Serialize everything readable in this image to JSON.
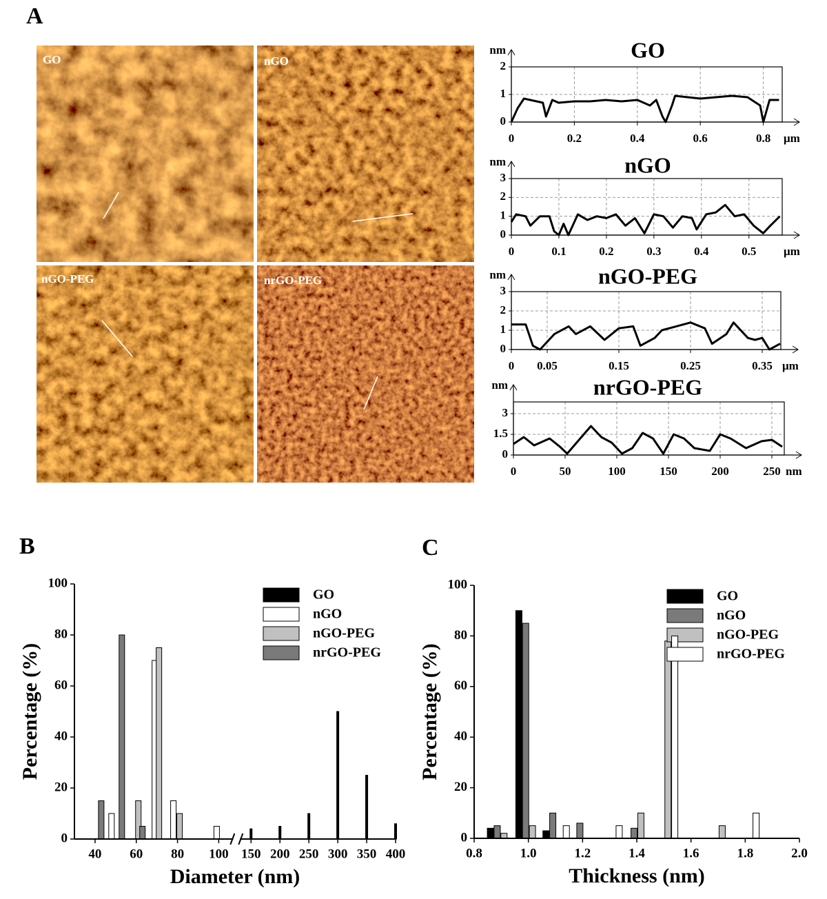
{
  "panel_labels": [
    "A",
    "B",
    "C"
  ],
  "afm_labels": [
    "GO",
    "nGO",
    "nGO-PEG",
    "nrGO-PEG"
  ],
  "chart_data": [
    {
      "type": "line",
      "title": "GO",
      "y_unit": "nm",
      "x_unit": "μm",
      "color": "#000000",
      "x": [
        0,
        0.02,
        0.04,
        0.06,
        0.08,
        0.1,
        0.11,
        0.13,
        0.15,
        0.2,
        0.25,
        0.3,
        0.35,
        0.4,
        0.44,
        0.46,
        0.48,
        0.49,
        0.51,
        0.52,
        0.56,
        0.6,
        0.65,
        0.7,
        0.75,
        0.79,
        0.8,
        0.82,
        0.85
      ],
      "values": [
        0,
        0.5,
        0.85,
        0.8,
        0.75,
        0.7,
        0.2,
        0.8,
        0.7,
        0.75,
        0.75,
        0.8,
        0.75,
        0.8,
        0.6,
        0.8,
        0.2,
        0,
        0.6,
        0.95,
        0.9,
        0.85,
        0.9,
        0.95,
        0.9,
        0.6,
        0,
        0.8,
        0.8
      ],
      "xlim": [
        0,
        0.86
      ],
      "xticks": [
        0,
        0.2,
        0.4,
        0.6,
        0.8
      ],
      "ylim": [
        0,
        2
      ],
      "yticks": [
        0,
        1,
        2
      ],
      "grid": true
    },
    {
      "type": "line",
      "title": "nGO",
      "y_unit": "nm",
      "x_unit": "μm",
      "color": "#000000",
      "x": [
        0,
        0.01,
        0.03,
        0.04,
        0.06,
        0.08,
        0.09,
        0.1,
        0.11,
        0.12,
        0.14,
        0.16,
        0.18,
        0.2,
        0.22,
        0.24,
        0.26,
        0.28,
        0.3,
        0.32,
        0.34,
        0.36,
        0.38,
        0.39,
        0.41,
        0.43,
        0.45,
        0.47,
        0.49,
        0.51,
        0.53,
        0.545,
        0.565
      ],
      "values": [
        0.7,
        1.1,
        1.0,
        0.5,
        1.0,
        1.0,
        0.2,
        0,
        0.6,
        0,
        1.1,
        0.8,
        1.0,
        0.9,
        1.1,
        0.5,
        0.9,
        0.1,
        1.1,
        1.0,
        0.4,
        1.0,
        0.9,
        0.3,
        1.1,
        1.2,
        1.6,
        1.0,
        1.1,
        0.5,
        0.1,
        0.5,
        1.0
      ],
      "xlim": [
        0,
        0.57
      ],
      "xticks": [
        0,
        0.1,
        0.2,
        0.3,
        0.4,
        0.5
      ],
      "ylim": [
        0,
        3
      ],
      "yticks": [
        0,
        1,
        2,
        3
      ],
      "grid": true
    },
    {
      "type": "line",
      "title": "nGO-PEG",
      "y_unit": "nm",
      "x_unit": "μm",
      "color": "#000000",
      "x": [
        0,
        0.02,
        0.03,
        0.04,
        0.06,
        0.08,
        0.09,
        0.11,
        0.13,
        0.15,
        0.17,
        0.18,
        0.2,
        0.21,
        0.23,
        0.25,
        0.27,
        0.28,
        0.3,
        0.31,
        0.33,
        0.34,
        0.35,
        0.36,
        0.375
      ],
      "values": [
        1.3,
        1.3,
        0.2,
        0,
        0.8,
        1.2,
        0.8,
        1.2,
        0.5,
        1.1,
        1.2,
        0.2,
        0.6,
        1.0,
        1.2,
        1.4,
        1.1,
        0.3,
        0.8,
        1.4,
        0.6,
        0.5,
        0.6,
        0,
        0.3
      ],
      "xlim": [
        0,
        0.376
      ],
      "xticks": [
        0,
        0.05,
        0.15,
        0.25,
        0.35
      ],
      "ylim": [
        0,
        3
      ],
      "yticks": [
        0,
        1,
        2,
        3
      ],
      "grid": true
    },
    {
      "type": "line",
      "title": "nrGO-PEG",
      "y_unit": "nm",
      "x_unit": "nm",
      "color": "#000000",
      "x": [
        0,
        10,
        20,
        35,
        45,
        52,
        60,
        75,
        85,
        95,
        105,
        115,
        125,
        135,
        145,
        155,
        165,
        175,
        190,
        200,
        210,
        225,
        240,
        250,
        260
      ],
      "values": [
        0.8,
        1.3,
        0.7,
        1.2,
        0.6,
        0.1,
        0.8,
        2.1,
        1.3,
        0.9,
        0.1,
        0.5,
        1.6,
        1.2,
        0.1,
        1.5,
        1.2,
        0.5,
        0.3,
        1.5,
        1.2,
        0.5,
        1.0,
        1.1,
        0.6
      ],
      "xlim": [
        0,
        262
      ],
      "xticks": [
        0,
        50,
        100,
        150,
        200,
        250
      ],
      "ylim": [
        0,
        3.85
      ],
      "yticks": [
        0,
        1.5,
        3
      ],
      "grid": true
    },
    {
      "type": "bar",
      "xlabel": "Diameter (nm)",
      "ylabel": "Percentage (%)",
      "legend": "top-right",
      "xlim": [
        30,
        400
      ],
      "x_break": [
        107,
        131
      ],
      "xticks": [
        40,
        60,
        80,
        100,
        150,
        200,
        250,
        300,
        350,
        400
      ],
      "ylim": [
        0,
        100
      ],
      "yticks": [
        0,
        20,
        40,
        60,
        80,
        100
      ],
      "series": [
        {
          "name": "GO",
          "color": "#000000",
          "x": [
            150,
            200,
            250,
            300,
            350,
            400
          ],
          "values": [
            4,
            5,
            10,
            50,
            25,
            6
          ]
        },
        {
          "name": "nGO",
          "color": "#ffffff",
          "x": [
            48,
            69,
            78,
            99
          ],
          "values": [
            10,
            70,
            15,
            5
          ]
        },
        {
          "name": "nGO-PEG",
          "color": "#c0c0c0",
          "x": [
            61,
            71,
            81
          ],
          "values": [
            15,
            75,
            10
          ]
        },
        {
          "name": "nrGO-PEG",
          "color": "#7a7a7a",
          "x": [
            43,
            53,
            63
          ],
          "values": [
            15,
            80,
            5
          ]
        }
      ]
    },
    {
      "type": "bar",
      "xlabel": "Thickness (nm)",
      "ylabel": "Percentage (%)",
      "legend": "top-right",
      "xlim": [
        0.8,
        2.0
      ],
      "xticks": [
        0.8,
        {
          "value": 1.0,
          "label": "1.0"
        },
        1.2,
        1.4,
        1.6,
        1.8,
        {
          "value": 2.0,
          "label": "2.0"
        }
      ],
      "ylim": [
        0,
        100
      ],
      "yticks": [
        0,
        20,
        40,
        60,
        80,
        100
      ],
      "series": [
        {
          "name": "GO",
          "color": "#000000",
          "x": [
            0.86,
            0.965,
            1.065
          ],
          "values": [
            4,
            90,
            3
          ]
        },
        {
          "name": "nGO",
          "color": "#7a7a7a",
          "x": [
            0.885,
            0.99,
            1.09,
            1.19,
            1.39
          ],
          "values": [
            5,
            85,
            10,
            6,
            4
          ]
        },
        {
          "name": "nGO-PEG",
          "color": "#c0c0c0",
          "x": [
            0.91,
            1.015,
            1.415,
            1.515,
            1.715
          ],
          "values": [
            2,
            5,
            10,
            78,
            5
          ]
        },
        {
          "name": "nrGO-PEG",
          "color": "#ffffff",
          "x": [
            1.14,
            1.335,
            1.54,
            1.84
          ],
          "values": [
            5,
            5,
            80,
            10
          ]
        }
      ]
    }
  ]
}
